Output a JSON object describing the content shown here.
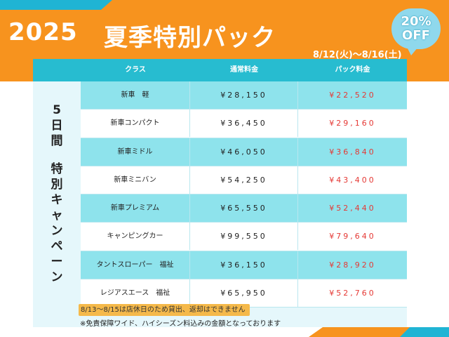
{
  "header": {
    "year": "2025",
    "title": "夏季特別パック",
    "period": "8/12(火)〜8/16(土)",
    "badge": {
      "percent": "20%",
      "off": "OFF"
    }
  },
  "colors": {
    "orange": "#f7931e",
    "cyan": "#27bcd0",
    "red": "#e53935"
  },
  "table": {
    "headers": [
      "クラス",
      "通常料金",
      "パック料金"
    ],
    "side_label_top": "5日間",
    "side_label_bottom": "特別キャンペーン",
    "rows": [
      {
        "class": "新車　軽",
        "regular": "¥28,150",
        "pack": "¥22,520"
      },
      {
        "class": "新車コンパクト",
        "regular": "¥36,450",
        "pack": "¥29,160"
      },
      {
        "class": "新車ミドル",
        "regular": "¥46,050",
        "pack": "¥36,840"
      },
      {
        "class": "新車ミニバン",
        "regular": "¥54,250",
        "pack": "¥43,400"
      },
      {
        "class": "新車プレミアム",
        "regular": "¥65,550",
        "pack": "¥52,440"
      },
      {
        "class": "キャンピングカー",
        "regular": "¥99,550",
        "pack": "¥79,640"
      },
      {
        "class": "タントスローパー　福祉",
        "regular": "¥36,150",
        "pack": "¥28,920"
      },
      {
        "class": "レジアスエース　福祉",
        "regular": "¥65,950",
        "pack": "¥52,760"
      }
    ]
  },
  "notes": {
    "closed": "8/13〜8/15は店休日のため貸出、返却はできません",
    "insurance": "※免責保障ワイド、ハイシーズン料込みの金額となっております"
  }
}
